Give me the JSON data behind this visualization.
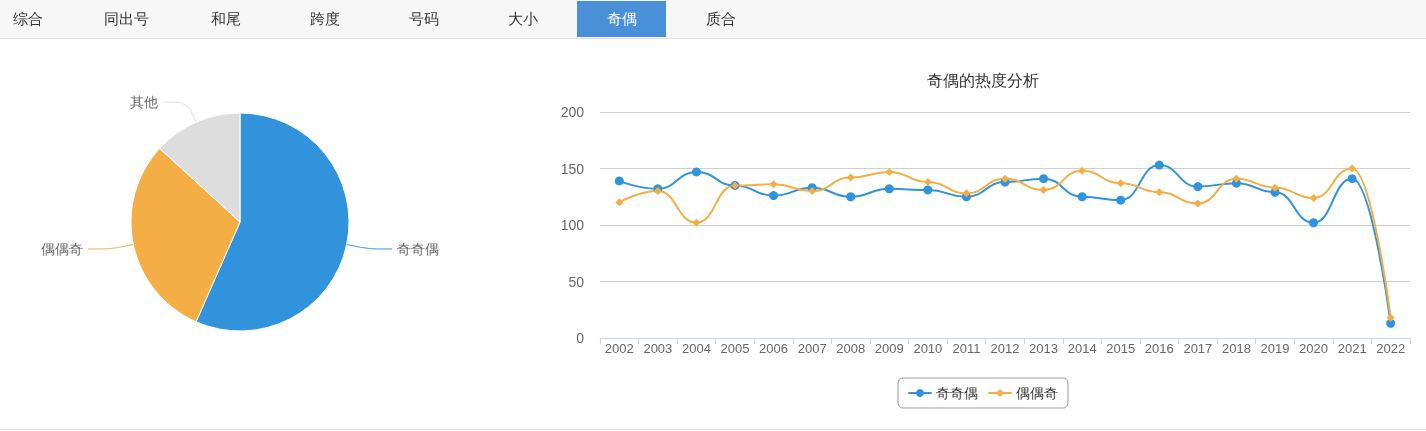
{
  "chart_data": [
    {
      "type": "other",
      "categories": [
        "综合",
        "同出号",
        "和尾",
        "跨度",
        "号码",
        "大小",
        "奇偶",
        "质合"
      ],
      "colors": [
        "#f7f7f7",
        "#f7f7f7",
        "#f7f7f7",
        "#f7f7f7",
        "#f7f7f7",
        "#f7f7f7",
        "#4a90d9",
        "#f7f7f7"
      ]
    },
    {
      "type": "pie",
      "categories": [
        "奇奇偶",
        "偶偶奇",
        "其他"
      ],
      "values": [
        56.6,
        30.2,
        13.2
      ],
      "colors": [
        "#3093db",
        "#f5ae46",
        "#dddddd"
      ],
      "legend": false
    },
    {
      "type": "line",
      "title": "奇偶的热度分析",
      "categories": [
        "2002",
        "2003",
        "2004",
        "2005",
        "2006",
        "2007",
        "2008",
        "2009",
        "2010",
        "2011",
        "2012",
        "2013",
        "2014",
        "2015",
        "2016",
        "2017",
        "2018",
        "2019",
        "2020",
        "2021",
        "2022"
      ],
      "series": [
        {
          "name": "奇奇偶",
          "color": "#3093db",
          "marker": "circle",
          "values": [
            139,
            132,
            147,
            135,
            126,
            133,
            125,
            132,
            131,
            125,
            138,
            141,
            125,
            122,
            153,
            134,
            137,
            129,
            102,
            141,
            13
          ]
        },
        {
          "name": "偶偶奇",
          "color": "#f5ae46",
          "marker": "diamond",
          "values": [
            120,
            130,
            102,
            135,
            136,
            130,
            142,
            147,
            138,
            128,
            141,
            131,
            148,
            137,
            129,
            119,
            141,
            133,
            124,
            150,
            18
          ]
        }
      ],
      "ylim": [
        0,
        200
      ],
      "yticks": [
        0,
        50,
        100,
        150,
        200
      ],
      "grid": "y",
      "legend": "bottom"
    }
  ]
}
